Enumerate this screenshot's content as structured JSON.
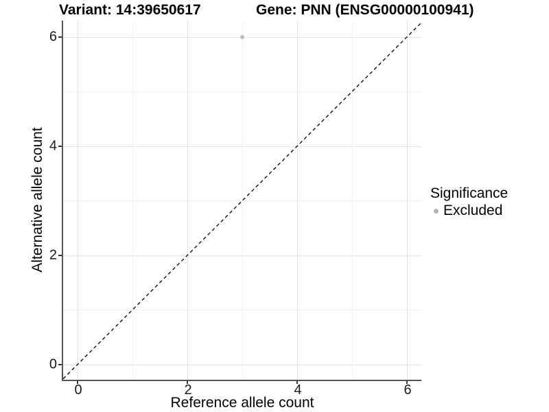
{
  "header": {
    "variant_title": "Variant: 14:39650617",
    "gene_title": "Gene: PNN (ENSG00000100941)"
  },
  "legend": {
    "title": "Significance",
    "items": [
      {
        "label": "Excluded",
        "color": "#b3b3b3"
      }
    ]
  },
  "chart_data": {
    "type": "scatter",
    "title": "Variant: 14:39650617   Gene: PNN (ENSG00000100941)",
    "xlabel": "Reference allele count",
    "ylabel": "Alternative allele count",
    "xlim": [
      -0.2625,
      6.2625
    ],
    "ylim": [
      -0.28,
      6.3
    ],
    "x_breaks": [
      0,
      2,
      4,
      6
    ],
    "y_breaks": [
      0,
      2,
      4,
      6
    ],
    "x_minor_breaks": [
      1,
      3,
      5
    ],
    "y_minor_breaks": [
      1,
      3,
      5
    ],
    "grid": true,
    "legend_position": "right",
    "series": [
      {
        "name": "Excluded",
        "color": "#bdbdbd",
        "points": [
          {
            "x": 3,
            "y": 6
          }
        ]
      }
    ],
    "reference_line": {
      "slope": 1,
      "intercept": 0,
      "style": "dashed",
      "color": "#000000"
    },
    "colors": {
      "major_grid": "#e2e2e2",
      "minor_grid": "#efefef",
      "axis_line": "#545454",
      "point": "#bdbdbd"
    }
  }
}
